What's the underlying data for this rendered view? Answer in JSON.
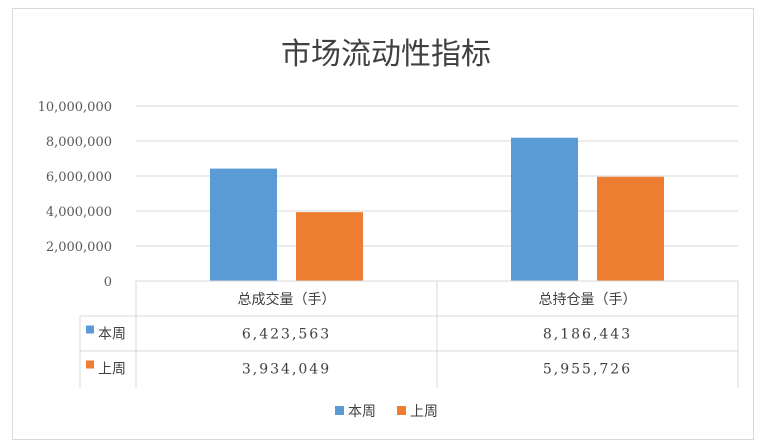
{
  "chart_data": {
    "type": "bar",
    "title": "市场流动性指标",
    "categories": [
      "总成交量（手）",
      "总持仓量（手）"
    ],
    "series": [
      {
        "name": "本周",
        "values": [
          6423563,
          8186443
        ],
        "value_labels": [
          "6,423,563",
          "8,186,443"
        ],
        "color": "#5b9bd5"
      },
      {
        "name": "上周",
        "values": [
          3934049,
          5955726
        ],
        "value_labels": [
          "3,934,049",
          "5,955,726"
        ],
        "color": "#ed7d31"
      }
    ],
    "ylim": [
      0,
      10000000
    ],
    "yticks": [
      "0",
      "2,000,000",
      "4,000,000",
      "6,000,000",
      "8,000,000",
      "10,000,000"
    ],
    "grid": true,
    "legend_position": "bottom",
    "data_table": true
  }
}
